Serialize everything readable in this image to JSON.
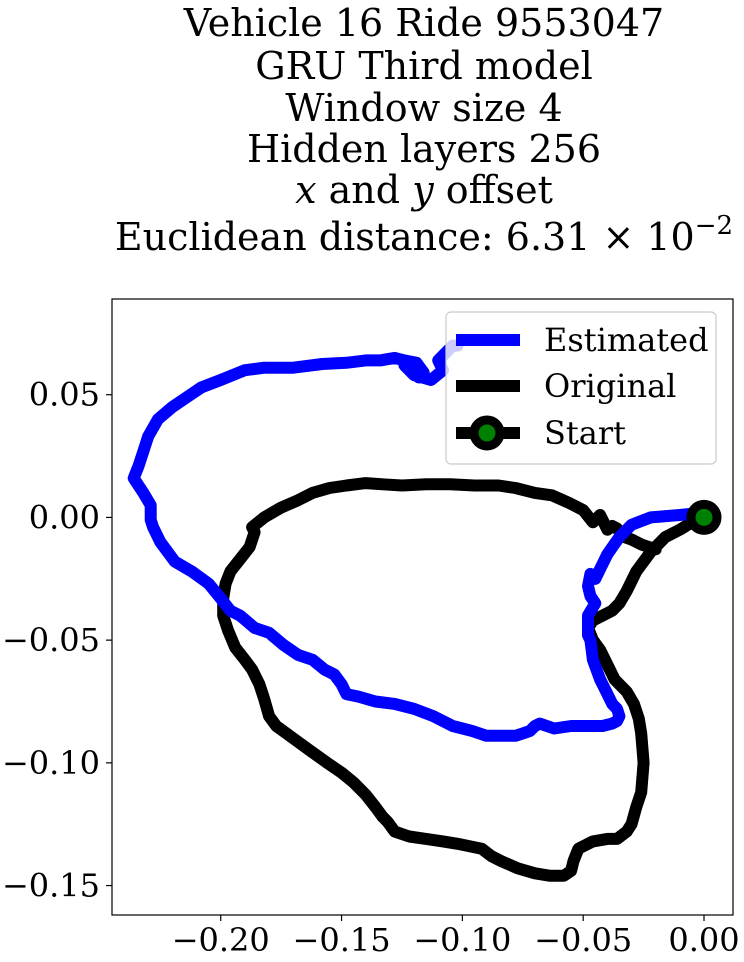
{
  "chart_data": {
    "type": "line",
    "title_lines": [
      "Vehicle 16 Ride 9553047",
      "GRU Third model",
      "Window size 4",
      "Hidden layers 256"
    ],
    "title_offset_line": {
      "x_var": "x",
      "and_text": " and ",
      "y_var": "y",
      "suffix": " offset"
    },
    "title_distance_line": {
      "prefix": "Euclidean distance: 6.31 × 10",
      "exponent": "−2"
    },
    "xlabel": "",
    "ylabel": "",
    "xlim": [
      -0.245,
      0.012
    ],
    "ylim": [
      -0.162,
      0.089
    ],
    "xticks": [
      {
        "value": -0.2,
        "label": "−0.20"
      },
      {
        "value": -0.15,
        "label": "−0.15"
      },
      {
        "value": -0.1,
        "label": "−0.10"
      },
      {
        "value": -0.05,
        "label": "−0.05"
      },
      {
        "value": 0.0,
        "label": "0.00"
      }
    ],
    "yticks": [
      {
        "value": 0.05,
        "label": "0.05"
      },
      {
        "value": 0.0,
        "label": "0.00"
      },
      {
        "value": -0.05,
        "label": "−0.05"
      },
      {
        "value": -0.1,
        "label": "−0.10"
      },
      {
        "value": -0.15,
        "label": "−0.15"
      }
    ],
    "grid": false,
    "legend_position": "top-right",
    "series": [
      {
        "name": "Estimated",
        "color": "#0000ff",
        "x": [
          0.0,
          -0.01,
          -0.022,
          -0.03,
          -0.035,
          -0.04,
          -0.043,
          -0.045,
          -0.047,
          -0.048,
          -0.047,
          -0.045,
          -0.048,
          -0.048,
          -0.047,
          -0.046,
          -0.043,
          -0.04,
          -0.038,
          -0.036,
          -0.035,
          -0.036,
          -0.038,
          -0.042,
          -0.048,
          -0.055,
          -0.062,
          -0.068,
          -0.07,
          -0.072,
          -0.075,
          -0.078,
          -0.082,
          -0.086,
          -0.09,
          -0.096,
          -0.104,
          -0.112,
          -0.12,
          -0.128,
          -0.136,
          -0.143,
          -0.148,
          -0.15,
          -0.153,
          -0.157,
          -0.162,
          -0.168,
          -0.174,
          -0.18,
          -0.186,
          -0.192,
          -0.196,
          -0.2,
          -0.205,
          -0.212,
          -0.219,
          -0.225,
          -0.228,
          -0.229,
          -0.229,
          -0.232,
          -0.236,
          -0.234,
          -0.232,
          -0.23,
          -0.226,
          -0.22,
          -0.214,
          -0.208,
          -0.2,
          -0.195,
          -0.19,
          -0.182,
          -0.17,
          -0.158,
          -0.148,
          -0.14,
          -0.134,
          -0.128,
          -0.124,
          -0.119,
          -0.116,
          -0.118,
          -0.124,
          -0.12,
          -0.113,
          -0.108,
          -0.11,
          -0.107,
          -0.105,
          -0.104,
          -0.102
        ],
        "y": [
          0.002,
          0.001,
          0.0,
          -0.003,
          -0.008,
          -0.015,
          -0.021,
          -0.025,
          -0.023,
          -0.028,
          -0.032,
          -0.035,
          -0.04,
          -0.048,
          -0.05,
          -0.058,
          -0.066,
          -0.072,
          -0.076,
          -0.078,
          -0.081,
          -0.083,
          -0.084,
          -0.085,
          -0.085,
          -0.085,
          -0.086,
          -0.084,
          -0.085,
          -0.087,
          -0.088,
          -0.089,
          -0.089,
          -0.089,
          -0.089,
          -0.087,
          -0.085,
          -0.081,
          -0.078,
          -0.076,
          -0.075,
          -0.073,
          -0.072,
          -0.068,
          -0.064,
          -0.062,
          -0.058,
          -0.056,
          -0.052,
          -0.047,
          -0.045,
          -0.04,
          -0.038,
          -0.033,
          -0.027,
          -0.022,
          -0.018,
          -0.01,
          -0.004,
          -0.001,
          0.005,
          0.01,
          0.016,
          0.021,
          0.027,
          0.033,
          0.04,
          0.045,
          0.049,
          0.053,
          0.056,
          0.058,
          0.06,
          0.061,
          0.061,
          0.0625,
          0.063,
          0.064,
          0.064,
          0.065,
          0.064,
          0.063,
          0.059,
          0.057,
          0.062,
          0.058,
          0.056,
          0.06,
          0.064,
          0.067,
          0.069,
          0.07,
          0.07
        ]
      },
      {
        "name": "Original",
        "color": "#000000",
        "x": [
          0.0,
          -0.005,
          -0.01,
          -0.016,
          -0.022,
          -0.028,
          -0.032,
          -0.035,
          -0.038,
          -0.042,
          -0.046,
          -0.048,
          -0.046,
          -0.043,
          -0.04,
          -0.037,
          -0.035,
          -0.032,
          -0.029,
          -0.027,
          -0.026,
          -0.025,
          -0.026,
          -0.028,
          -0.03,
          -0.032,
          -0.036,
          -0.04,
          -0.046,
          -0.052,
          -0.054,
          -0.055,
          -0.058,
          -0.064,
          -0.07,
          -0.077,
          -0.084,
          -0.088,
          -0.092,
          -0.097,
          -0.102,
          -0.108,
          -0.115,
          -0.122,
          -0.128,
          -0.131,
          -0.133,
          -0.136,
          -0.14,
          -0.145,
          -0.15,
          -0.156,
          -0.163,
          -0.17,
          -0.177,
          -0.18,
          -0.182,
          -0.184,
          -0.187,
          -0.19,
          -0.194,
          -0.197,
          -0.199,
          -0.199,
          -0.198,
          -0.196,
          -0.192,
          -0.188,
          -0.186,
          -0.187,
          -0.182,
          -0.175,
          -0.168,
          -0.162,
          -0.155,
          -0.148,
          -0.14,
          -0.133,
          -0.125,
          -0.115,
          -0.105,
          -0.095,
          -0.085,
          -0.078,
          -0.07,
          -0.063,
          -0.056,
          -0.05,
          -0.046,
          -0.043,
          -0.04,
          -0.038,
          -0.036,
          -0.033,
          -0.03,
          -0.026,
          -0.02
        ],
        "y": [
          0.0,
          -0.002,
          -0.005,
          -0.008,
          -0.014,
          -0.022,
          -0.03,
          -0.035,
          -0.038,
          -0.04,
          -0.042,
          -0.045,
          -0.05,
          -0.054,
          -0.06,
          -0.066,
          -0.068,
          -0.071,
          -0.076,
          -0.082,
          -0.088,
          -0.1,
          -0.112,
          -0.118,
          -0.125,
          -0.128,
          -0.131,
          -0.131,
          -0.132,
          -0.135,
          -0.14,
          -0.144,
          -0.146,
          -0.146,
          -0.145,
          -0.143,
          -0.14,
          -0.138,
          -0.135,
          -0.134,
          -0.133,
          -0.132,
          -0.131,
          -0.13,
          -0.128,
          -0.124,
          -0.122,
          -0.118,
          -0.113,
          -0.108,
          -0.104,
          -0.1,
          -0.095,
          -0.09,
          -0.085,
          -0.081,
          -0.074,
          -0.068,
          -0.062,
          -0.058,
          -0.053,
          -0.046,
          -0.04,
          -0.033,
          -0.027,
          -0.022,
          -0.017,
          -0.012,
          -0.006,
          -0.004,
          0.0,
          0.004,
          0.007,
          0.01,
          0.012,
          0.013,
          0.014,
          0.0135,
          0.013,
          0.0135,
          0.0135,
          0.013,
          0.013,
          0.012,
          0.01,
          0.009,
          0.006,
          0.003,
          -0.002,
          0.001,
          -0.005,
          -0.0035,
          -0.0045,
          -0.008,
          -0.009,
          -0.011,
          -0.013
        ]
      }
    ],
    "start_marker": {
      "name": "Start",
      "x": 0.0,
      "y": 0.0,
      "edge_color": "#000000",
      "face_color": "#008000"
    }
  }
}
